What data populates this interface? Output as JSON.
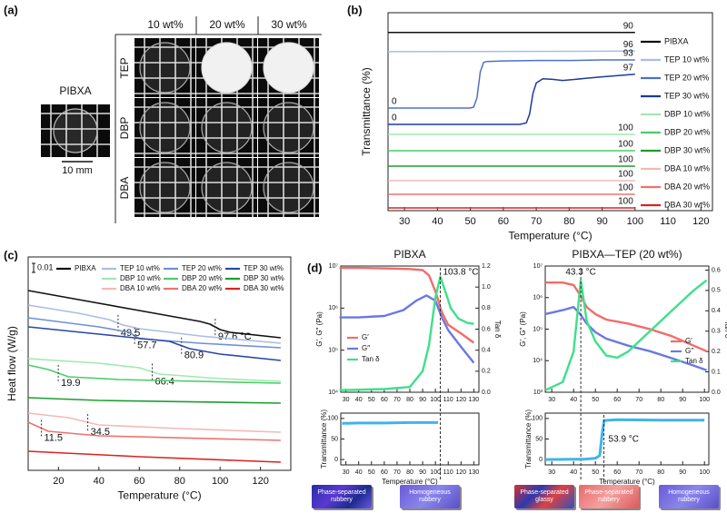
{
  "panel_labels": [
    "(a)",
    "(b)",
    "(c)",
    "(d)"
  ],
  "panel_a": {
    "reference": "PIBXA",
    "scale_bar": "10 mm",
    "columns": [
      "10 wt%",
      "20 wt%",
      "30 wt%"
    ],
    "rows": [
      "TEP",
      "DBP",
      "DBA"
    ]
  },
  "states": [
    "Phase-separated rubbery",
    "Homogeneous rubbery",
    "Phase-separated glassy",
    "Phase-separated rubbery",
    "Homogeneous rubbery"
  ],
  "chart_data": [
    {
      "type": "line",
      "x_label": "Temperature (°C)",
      "y_label": "Transmittance (%)",
      "xlim": [
        25,
        123.5
      ],
      "xticks": [
        30,
        40,
        50,
        60,
        70,
        80,
        90,
        100,
        110,
        120
      ],
      "series": [
        {
          "name": "PIBXA",
          "color": "#111111",
          "x": [
            25,
            100
          ],
          "values": [
            90,
            90
          ]
        },
        {
          "name": "TEP 10 wt%",
          "color": "#a9bde6",
          "x": [
            25,
            100
          ],
          "values": [
            95,
            96
          ]
        },
        {
          "name": "TEP 20 wt%",
          "color": "#4f70c8",
          "x": [
            25,
            50,
            51,
            52,
            53,
            54,
            55,
            60,
            70,
            80,
            90,
            100
          ],
          "values": [
            0,
            0,
            2,
            20,
            70,
            88,
            90,
            91,
            92,
            92,
            93,
            93
          ]
        },
        {
          "name": "TEP 30 wt%",
          "color": "#1d3a9c",
          "x": [
            25,
            65,
            67,
            68,
            69,
            70,
            72,
            75,
            78,
            80,
            85,
            90,
            100
          ],
          "values": [
            0,
            0,
            3,
            20,
            60,
            80,
            88,
            87,
            85,
            86,
            89,
            92,
            97
          ]
        },
        {
          "name": "DBP 10 wt%",
          "color": "#9fe8b2",
          "x": [
            25,
            100
          ],
          "values": [
            100,
            100
          ]
        },
        {
          "name": "DBP 20 wt%",
          "color": "#4ccc6a",
          "x": [
            25,
            100
          ],
          "values": [
            100,
            100
          ]
        },
        {
          "name": "DBP 30 wt%",
          "color": "#1c9e2e",
          "x": [
            25,
            100
          ],
          "values": [
            100,
            100
          ]
        },
        {
          "name": "DBA 10 wt%",
          "color": "#f4b8b8",
          "x": [
            25,
            100
          ],
          "values": [
            100,
            100
          ]
        },
        {
          "name": "DBA 20 wt%",
          "color": "#ee7272",
          "x": [
            25,
            100
          ],
          "values": [
            100,
            100
          ]
        },
        {
          "name": "DBA 30 wt%",
          "color": "#dc2222",
          "x": [
            25,
            100
          ],
          "values": [
            100,
            100
          ]
        }
      ]
    },
    {
      "type": "line",
      "x_label": "Temperature (°C)",
      "y_label": "Heat flow (W/g)",
      "scale_bar": 0.01,
      "xlim": [
        5,
        135
      ],
      "xticks": [
        20,
        40,
        60,
        80,
        100,
        120
      ],
      "series": [
        {
          "name": "PIBXA",
          "color": "#111111",
          "x": [
            5,
            30,
            60,
            90,
            95,
            100,
            105,
            130
          ],
          "values": [
            0,
            -0.01,
            -0.022,
            -0.034,
            -0.037,
            -0.043,
            -0.046,
            -0.052
          ],
          "transitions": [
            {
              "value": 97.6,
              "label": "97.6 °C"
            }
          ]
        },
        {
          "name": "TEP 10 wt%",
          "color": "#a9bde6",
          "x": [
            5,
            30,
            45,
            52,
            60,
            90,
            130
          ],
          "values": [
            0,
            -0.009,
            -0.016,
            -0.022,
            -0.026,
            -0.034,
            -0.042
          ],
          "transitions": [
            49.5
          ]
        },
        {
          "name": "TEP 20 wt%",
          "color": "#6f8fd6",
          "x": [
            5,
            40,
            55,
            60,
            90,
            130
          ],
          "values": [
            0,
            -0.01,
            -0.016,
            -0.023,
            -0.028,
            -0.033
          ],
          "transitions": [
            57.7
          ]
        },
        {
          "name": "TEP 30 wt%",
          "color": "#2846a8",
          "x": [
            5,
            40,
            75,
            85,
            100,
            130
          ],
          "values": [
            0,
            -0.008,
            -0.016,
            -0.024,
            -0.03,
            -0.037
          ],
          "transitions": [
            80.9
          ]
        },
        {
          "name": "DBP 10 wt%",
          "color": "#9fe8b2",
          "x": [
            5,
            40,
            60,
            70,
            100,
            130
          ],
          "values": [
            0,
            -0.005,
            -0.01,
            -0.017,
            -0.022,
            -0.025
          ],
          "transitions": [
            66.4
          ]
        },
        {
          "name": "DBP 20 wt%",
          "color": "#4ccc6a",
          "x": [
            5,
            15,
            25,
            50,
            130
          ],
          "values": [
            0,
            -0.005,
            -0.013,
            -0.016,
            -0.02
          ],
          "transitions": [
            19.9
          ]
        },
        {
          "name": "DBP 30 wt%",
          "color": "#1c9e2e",
          "x": [
            5,
            40,
            130
          ],
          "values": [
            0,
            -0.003,
            -0.006
          ]
        },
        {
          "name": "DBA 10 wt%",
          "color": "#f4b8b8",
          "x": [
            5,
            25,
            40,
            80,
            130
          ],
          "values": [
            0,
            -0.005,
            -0.013,
            -0.017,
            -0.021
          ],
          "transitions": [
            34.5
          ]
        },
        {
          "name": "DBA 20 wt%",
          "color": "#ee7272",
          "x": [
            5,
            15,
            40,
            130
          ],
          "values": [
            0,
            -0.01,
            -0.015,
            -0.02
          ],
          "transitions": [
            11.5
          ]
        },
        {
          "name": "DBA 30 wt%",
          "color": "#dc2222",
          "x": [
            5,
            60,
            130
          ],
          "values": [
            0,
            -0.006,
            -0.012
          ]
        }
      ]
    },
    {
      "type": "line",
      "title": "PIBXA",
      "y_label": "G′, G″ (Pa)",
      "y2_label": "Tan δ",
      "log_y": true,
      "xlim": [
        26,
        134
      ],
      "xticks": [
        30,
        40,
        50,
        60,
        70,
        80,
        90,
        100,
        110,
        120,
        130
      ],
      "ylim": [
        10000,
        10000000
      ],
      "yticks": [
        {
          "value": 10000,
          "label": "10⁴"
        },
        {
          "value": 100000,
          "label": "10⁵"
        },
        {
          "value": 1000000,
          "label": "10⁶"
        },
        {
          "value": 10000000,
          "label": "10⁷"
        }
      ],
      "y2lim": [
        0,
        1.2
      ],
      "y2ticks": [
        {
          "value": 0,
          "label": "0.0"
        },
        0.2,
        0.4,
        0.6,
        0.8,
        {
          "value": 1,
          "label": "1.0"
        },
        1.2
      ],
      "annotations": [
        {
          "value": 103.8,
          "label": "103.8 °C"
        }
      ],
      "series": [
        {
          "name": "G′",
          "color": "#f26b6b",
          "x": [
            25,
            40,
            60,
            80,
            90,
            95,
            100,
            105,
            110,
            120,
            130
          ],
          "values": [
            9000000,
            9000000,
            8800000,
            8500000,
            8000000,
            6000000,
            2500000,
            800000,
            400000,
            250000,
            150000
          ]
        },
        {
          "name": "G″",
          "color": "#6b78e0",
          "x": [
            25,
            40,
            60,
            75,
            85,
            93,
            100,
            105,
            110,
            120,
            130
          ],
          "values": [
            600000,
            600000,
            650000,
            900000,
            1500000,
            2000000,
            1500000,
            600000,
            300000,
            120000,
            50000
          ]
        },
        {
          "name": "Tan δ",
          "color": "#3ee08a",
          "axis": "y2",
          "x": [
            25,
            60,
            80,
            90,
            95,
            100,
            103.8,
            108,
            112,
            118,
            125,
            130
          ],
          "values": [
            0.02,
            0.03,
            0.05,
            0.2,
            0.45,
            0.9,
            1.1,
            0.95,
            0.8,
            0.7,
            0.66,
            0.65
          ]
        }
      ]
    },
    {
      "type": "line",
      "x_label": "Temperature (°C)",
      "y_label": "Transmittance (%)",
      "xlim": [
        26,
        134
      ],
      "xticks": [
        30,
        40,
        50,
        60,
        70,
        80,
        90,
        100,
        110,
        120,
        130
      ],
      "ylim": [
        -13,
        113
      ],
      "yticks": [
        0,
        50,
        100
      ],
      "series": [
        {
          "color": "#3fb4ec",
          "x": [
            27,
            40,
            60,
            80,
            102
          ],
          "values": [
            88,
            89,
            89,
            90,
            90
          ]
        }
      ]
    },
    {
      "type": "line",
      "title": "PIBXA—TEP (20 wt%)",
      "y_label": "G′, G″ (Pa)",
      "y2_label": "Tan δ",
      "log_y": true,
      "xlim": [
        27,
        102
      ],
      "xticks": [
        30,
        40,
        50,
        60,
        70,
        80,
        90,
        100
      ],
      "ylim": [
        1000,
        10000000
      ],
      "yticks": [
        {
          "value": 1000,
          "label": "10³"
        },
        {
          "value": 10000,
          "label": "10⁴"
        },
        {
          "value": 100000,
          "label": "10⁵"
        },
        {
          "value": 1000000,
          "label": "10⁶"
        },
        {
          "value": 10000000,
          "label": "10⁷"
        }
      ],
      "y2lim": [
        0,
        0.62
      ],
      "y2ticks": [
        {
          "value": 0,
          "label": "0.0"
        },
        0.1,
        0.2,
        0.3,
        0.4,
        0.5,
        0.6
      ],
      "annotations": [
        {
          "value": 43.3,
          "label": "43.3 °C"
        }
      ],
      "series": [
        {
          "name": "G′",
          "color": "#f26b6b",
          "x": [
            27,
            35,
            40,
            43,
            46,
            50,
            55,
            65,
            75,
            85,
            95,
            101
          ],
          "values": [
            3000000,
            3000000,
            2500000,
            1200000,
            500000,
            300000,
            200000,
            150000,
            100000,
            60000,
            30000,
            20000
          ]
        },
        {
          "name": "G″",
          "color": "#6b78e0",
          "x": [
            27,
            35,
            40,
            43,
            46,
            50,
            55,
            65,
            75,
            85,
            95,
            101
          ],
          "values": [
            300000,
            400000,
            500000,
            300000,
            150000,
            80000,
            50000,
            30000,
            20000,
            12000,
            7000,
            5000
          ]
        },
        {
          "name": "Tan δ",
          "color": "#3ee08a",
          "axis": "y2",
          "x": [
            27,
            35,
            40,
            43.3,
            46,
            50,
            55,
            60,
            65,
            70,
            75,
            80,
            85,
            90,
            95,
            101
          ],
          "values": [
            0.01,
            0.05,
            0.2,
            0.55,
            0.35,
            0.25,
            0.18,
            0.17,
            0.2,
            0.25,
            0.3,
            0.35,
            0.4,
            0.45,
            0.5,
            0.55
          ]
        }
      ]
    },
    {
      "type": "line",
      "x_label": "Temperature (°C)",
      "y_label": "Transmittance (%)",
      "xlim": [
        27,
        102
      ],
      "xticks": [
        30,
        40,
        50,
        60,
        70,
        80,
        90,
        100
      ],
      "ylim": [
        -13,
        113
      ],
      "yticks": [
        0,
        50,
        100
      ],
      "annotations": [
        {
          "value": 53.9,
          "label": "53.9 °C"
        }
      ],
      "series": [
        {
          "color": "#3fb4ec",
          "x": [
            27,
            45,
            50,
            52,
            53,
            54,
            60,
            80,
            100
          ],
          "values": [
            0,
            1,
            3,
            10,
            60,
            95,
            97,
            96,
            96
          ]
        }
      ]
    }
  ]
}
